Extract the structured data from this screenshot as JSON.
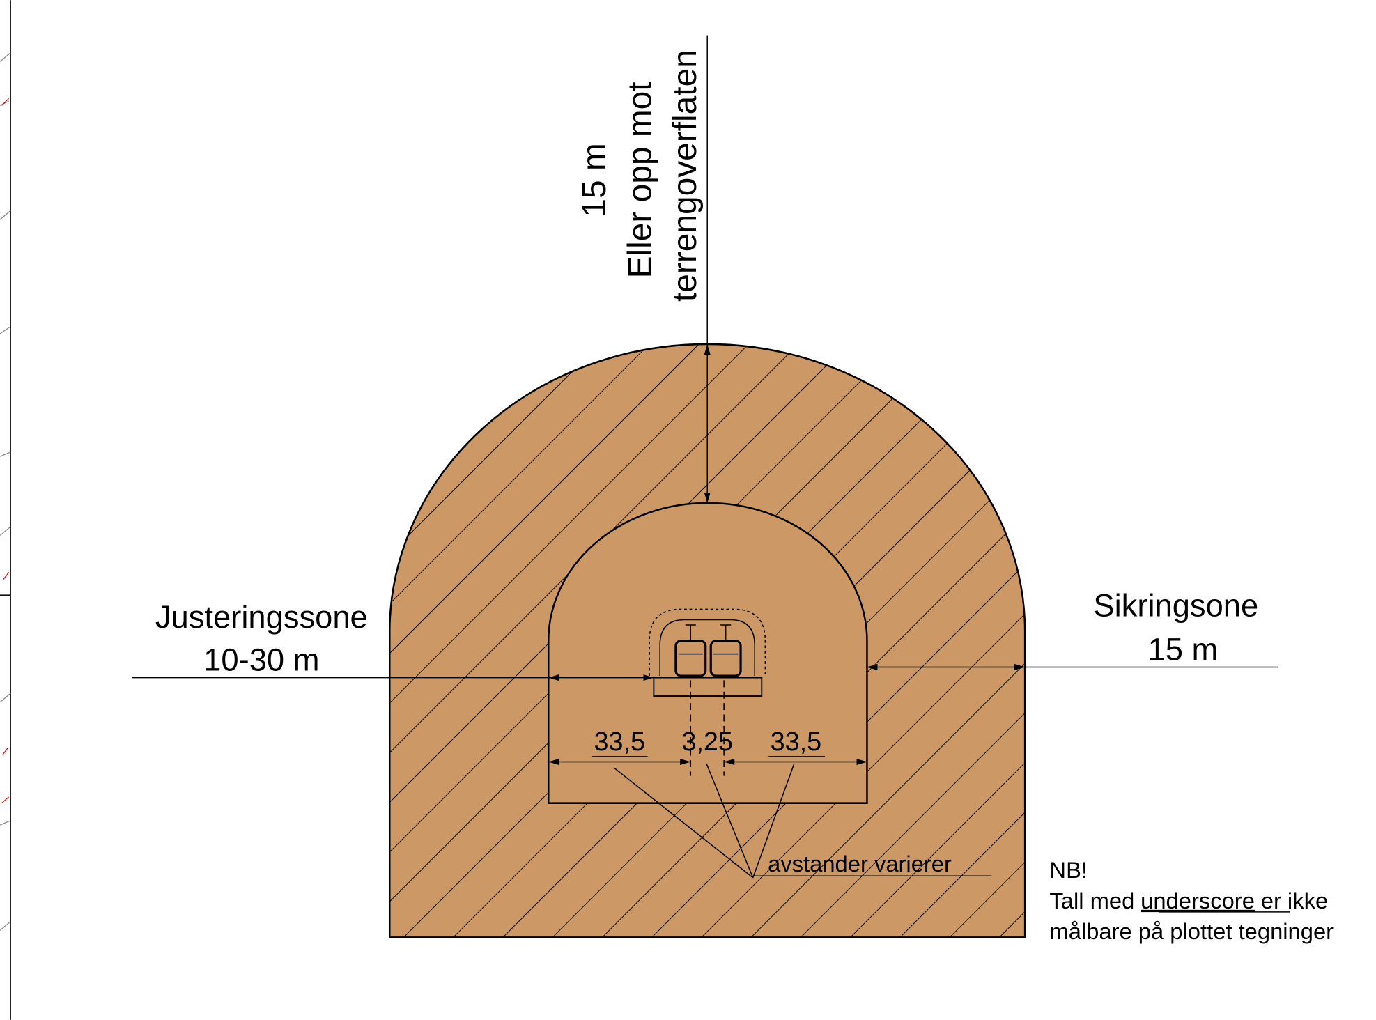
{
  "labels": {
    "depth": {
      "value": "15 m",
      "line1": "Eller opp mot",
      "line2": "terrengoverflaten"
    },
    "adjust": {
      "name": "Justeringssone",
      "range": "10-30 m"
    },
    "safety": {
      "name": "Sikringsone",
      "range": "15 m"
    },
    "dims": [
      "33,5",
      "3,25",
      "33,5"
    ],
    "varies": "avstander varierer",
    "note": {
      "title": "NB!",
      "part1": "Tall med",
      "underlined": "underscore",
      "part2": "er ikke",
      "line2": "målbare på plottet tegninger"
    }
  }
}
